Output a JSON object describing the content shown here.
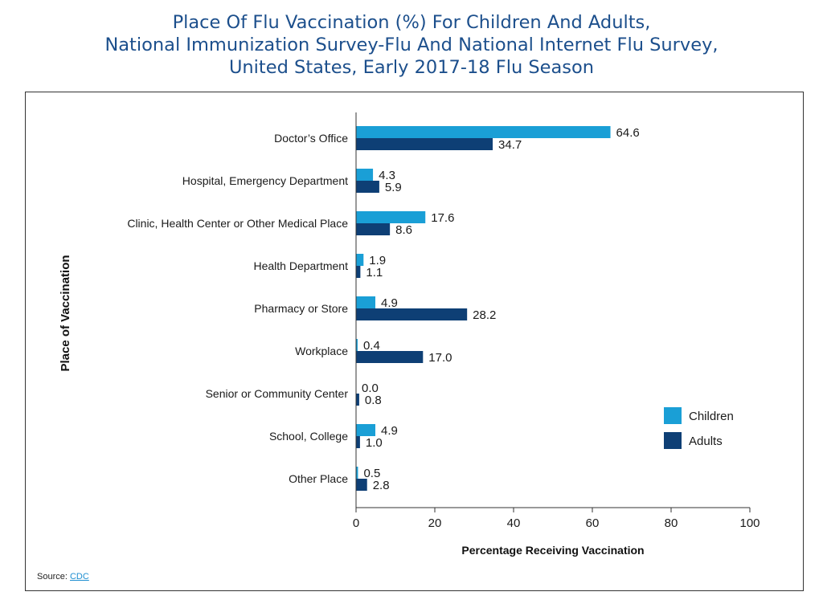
{
  "title_lines": [
    "Place Of Flu Vaccination (%) For Children And Adults,",
    "National Immunization Survey-Flu And National Internet Flu Survey,",
    "United States, Early 2017-18 Flu Season"
  ],
  "source": {
    "label": "Source:",
    "link_text": "CDC"
  },
  "colors": {
    "children": "#1a9fd6",
    "adults": "#0e3f75",
    "title": "#1c4f8c",
    "axis": "#333333"
  },
  "chart_data": {
    "type": "bar",
    "orientation": "horizontal",
    "categories": [
      "Doctor’s Office",
      "Hospital, Emergency Department",
      "Clinic, Health Center or Other Medical Place",
      "Health Department",
      "Pharmacy or Store",
      "Workplace",
      "Senior or Community Center",
      "School, College",
      "Other Place"
    ],
    "series": [
      {
        "name": "Children",
        "values": [
          64.6,
          4.3,
          17.6,
          1.9,
          4.9,
          0.4,
          0.0,
          4.9,
          0.5
        ]
      },
      {
        "name": "Adults",
        "values": [
          34.7,
          5.9,
          8.6,
          1.1,
          28.2,
          17.0,
          0.8,
          1.0,
          2.8
        ]
      }
    ],
    "value_labels": {
      "Children": [
        "64.6",
        "4.3",
        "17.6",
        "1.9",
        "4.9",
        "0.4",
        "0.0",
        "4.9",
        "0.5"
      ],
      "Adults": [
        "34.7",
        "5.9",
        "8.6",
        "1.1",
        "28.2",
        "17.0",
        "0.8",
        "1.0",
        "2.8"
      ]
    },
    "xlabel": "Percentage Receiving Vaccination",
    "ylabel": "Place of Vaccination",
    "xlim": [
      0,
      100
    ],
    "xticks": [
      0,
      20,
      40,
      60,
      80,
      100
    ],
    "grid": false,
    "legend_position": "right"
  }
}
